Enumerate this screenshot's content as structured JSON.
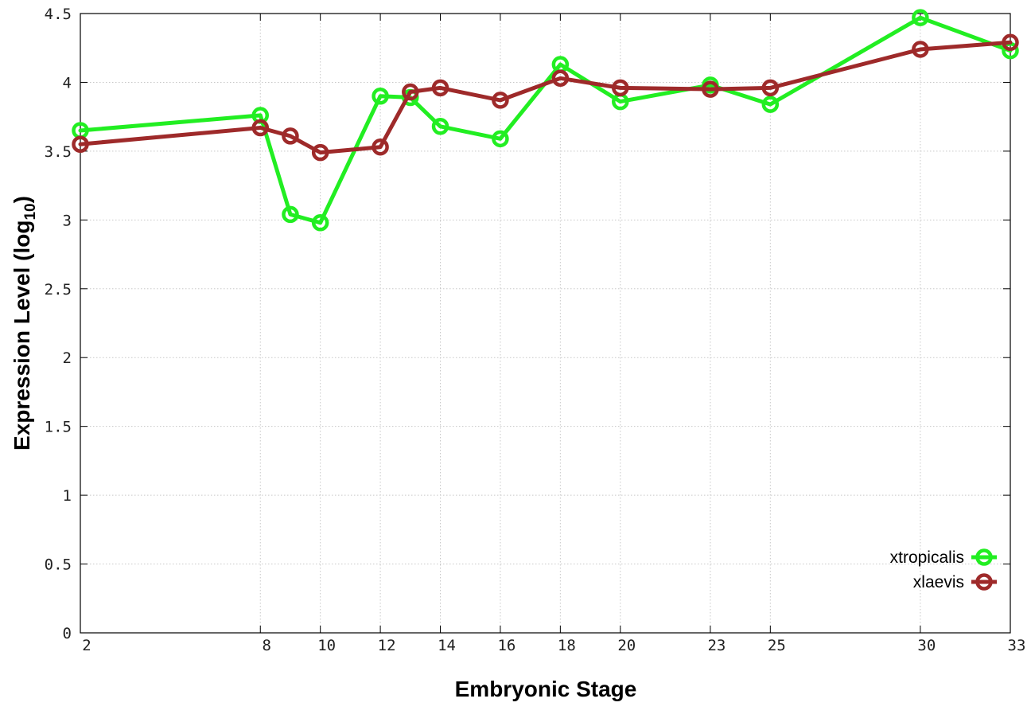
{
  "chart_data": {
    "type": "line",
    "xlabel": "Embryonic Stage",
    "ylabel": {
      "main": "Expression Level (log",
      "subscript": "10",
      "close": ")"
    },
    "x_ticks": [
      {
        "value": 2,
        "label": "2"
      },
      {
        "value": 8,
        "label": "8"
      },
      {
        "value": 10,
        "label": "10"
      },
      {
        "value": 12,
        "label": "12"
      },
      {
        "value": 14,
        "label": "14"
      },
      {
        "value": 16,
        "label": "16"
      },
      {
        "value": 18,
        "label": "18"
      },
      {
        "value": 20,
        "label": "20"
      },
      {
        "value": 23,
        "label": "23"
      },
      {
        "value": 25,
        "label": "25"
      },
      {
        "value": 30,
        "label": "30"
      },
      {
        "value": 33,
        "label": "33"
      }
    ],
    "y_ticks": [
      {
        "value": 0,
        "label": "0"
      },
      {
        "value": 0.5,
        "label": "0.5"
      },
      {
        "value": 1,
        "label": "1"
      },
      {
        "value": 1.5,
        "label": "1.5"
      },
      {
        "value": 2,
        "label": "2"
      },
      {
        "value": 2.5,
        "label": "2.5"
      },
      {
        "value": 3,
        "label": "3"
      },
      {
        "value": 3.5,
        "label": "3.5"
      },
      {
        "value": 4,
        "label": "4"
      },
      {
        "value": 4.5,
        "label": "4.5"
      }
    ],
    "xlim": [
      2,
      33
    ],
    "ylim": [
      0,
      4.5
    ],
    "grid": true,
    "legend_position": "bottom-right",
    "series": [
      {
        "name": "xtropicalis",
        "color": "#22ee22",
        "points": [
          {
            "x": 2,
            "y": 3.65
          },
          {
            "x": 8,
            "y": 3.76
          },
          {
            "x": 9,
            "y": 3.04
          },
          {
            "x": 10,
            "y": 2.98
          },
          {
            "x": 12,
            "y": 3.9
          },
          {
            "x": 13,
            "y": 3.89
          },
          {
            "x": 14,
            "y": 3.68
          },
          {
            "x": 16,
            "y": 3.59
          },
          {
            "x": 18,
            "y": 4.13
          },
          {
            "x": 20,
            "y": 3.86
          },
          {
            "x": 23,
            "y": 3.98
          },
          {
            "x": 25,
            "y": 3.84
          },
          {
            "x": 30,
            "y": 4.47
          },
          {
            "x": 33,
            "y": 4.23
          }
        ]
      },
      {
        "name": "xlaevis",
        "color": "#9e2a2a",
        "points": [
          {
            "x": 2,
            "y": 3.55
          },
          {
            "x": 8,
            "y": 3.67
          },
          {
            "x": 9,
            "y": 3.61
          },
          {
            "x": 10,
            "y": 3.49
          },
          {
            "x": 12,
            "y": 3.53
          },
          {
            "x": 13,
            "y": 3.93
          },
          {
            "x": 14,
            "y": 3.96
          },
          {
            "x": 16,
            "y": 3.87
          },
          {
            "x": 18,
            "y": 4.03
          },
          {
            "x": 20,
            "y": 3.96
          },
          {
            "x": 23,
            "y": 3.95
          },
          {
            "x": 25,
            "y": 3.96
          },
          {
            "x": 30,
            "y": 4.24
          },
          {
            "x": 33,
            "y": 4.29
          }
        ]
      }
    ]
  }
}
